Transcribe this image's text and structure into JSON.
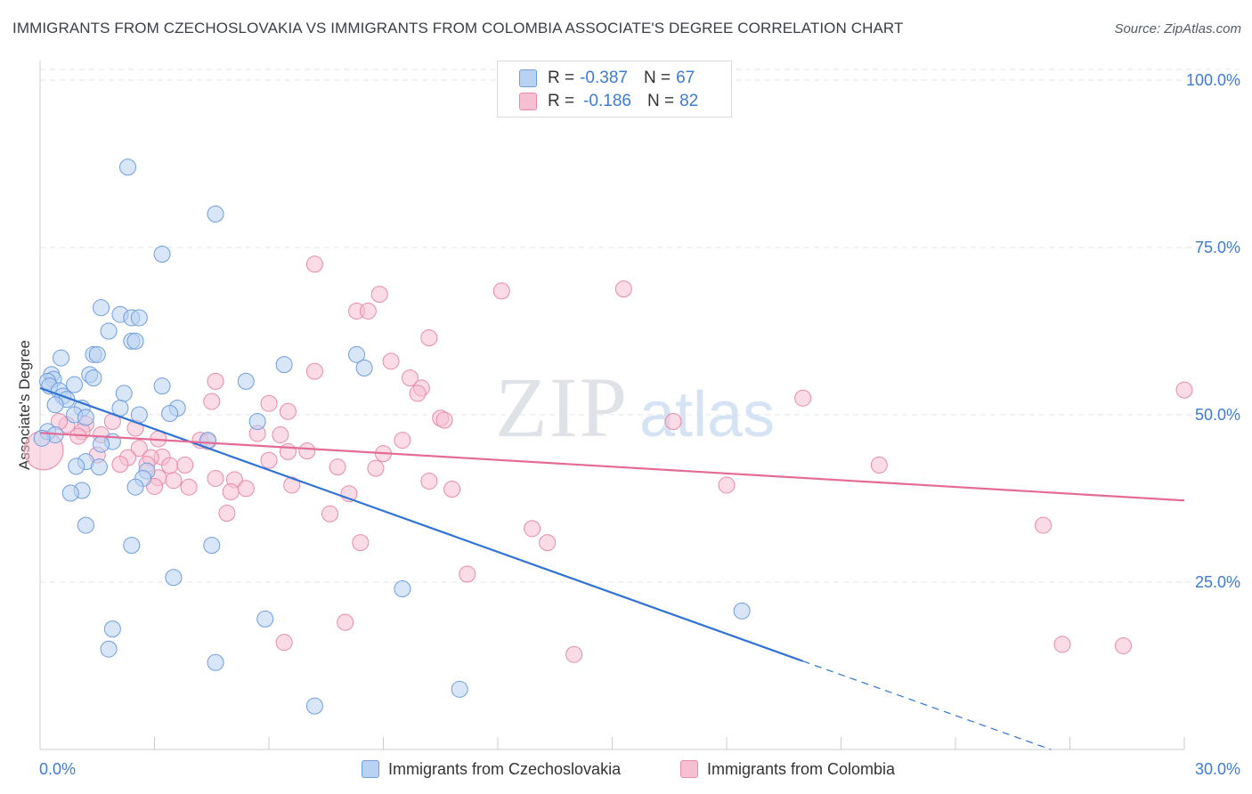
{
  "title": "IMMIGRANTS FROM CZECHOSLOVAKIA VS IMMIGRANTS FROM COLOMBIA ASSOCIATE'S DEGREE CORRELATION CHART",
  "source": "Source: ZipAtlas.com",
  "watermark": {
    "zip": "ZIP",
    "atlas": "atlas"
  },
  "legend_top": [
    {
      "r_label": "R =",
      "r_value": "-0.387",
      "n_label": "N =",
      "n_value": "67"
    },
    {
      "r_label": "R =",
      "r_value": "-0.186",
      "n_label": "N =",
      "n_value": "82"
    }
  ],
  "bottom_legend": [
    {
      "label": "Immigrants from Czechoslovakia"
    },
    {
      "label": "Immigrants from Colombia"
    }
  ],
  "colors": {
    "blue_fill": "#b9d2f3",
    "blue_stroke": "#6d9ee0",
    "blue_line": "#2f73d6",
    "pink_fill": "#f7c0d2",
    "pink_stroke": "#e88aa8",
    "pink_line": "#e36b95",
    "tick_label": "#3d7bd4",
    "grid": "#e1e4e8"
  },
  "chart_data": {
    "type": "scatter",
    "title": "IMMIGRANTS FROM CZECHOSLOVAKIA VS IMMIGRANTS FROM COLOMBIA ASSOCIATE'S DEGREE CORRELATION CHART",
    "xlabel": "",
    "ylabel": "Associate's Degree",
    "xlim": [
      0,
      30
    ],
    "ylim": [
      0,
      100
    ],
    "x_tick_labels": [
      "0.0%",
      "30.0%"
    ],
    "y_ticks": [
      25,
      50,
      75,
      100
    ],
    "y_tick_labels": [
      "25.0%",
      "50.0%",
      "75.0%",
      "100.0%"
    ],
    "grid": true,
    "legend_position": "top-center",
    "series": [
      {
        "name": "Immigrants from Czechoslovakia",
        "r": -0.387,
        "n": 67,
        "trend": {
          "x0": 0,
          "y0": 54.0,
          "x1": 20.0,
          "y1": 13.2,
          "dashed_to_x": 26.5,
          "dashed_to_y": 0
        },
        "points": [
          [
            2.3,
            87
          ],
          [
            4.6,
            80
          ],
          [
            3.2,
            74
          ],
          [
            1.6,
            66
          ],
          [
            2.1,
            65
          ],
          [
            2.4,
            64.5
          ],
          [
            2.6,
            64.5
          ],
          [
            1.8,
            62.5
          ],
          [
            2.4,
            61
          ],
          [
            2.5,
            61
          ],
          [
            1.4,
            59
          ],
          [
            1.5,
            59
          ],
          [
            0.55,
            58.5
          ],
          [
            8.3,
            59
          ],
          [
            6.4,
            57.5
          ],
          [
            8.5,
            57
          ],
          [
            1.3,
            56
          ],
          [
            1.4,
            55.5
          ],
          [
            0.3,
            56
          ],
          [
            0.35,
            55.3
          ],
          [
            0.2,
            55
          ],
          [
            0.25,
            54.3
          ],
          [
            0.5,
            53.6
          ],
          [
            0.9,
            54.5
          ],
          [
            5.4,
            55
          ],
          [
            3.2,
            54.3
          ],
          [
            2.2,
            53.2
          ],
          [
            0.6,
            52.8
          ],
          [
            0.7,
            52.3
          ],
          [
            0.4,
            51.5
          ],
          [
            1.1,
            51
          ],
          [
            2.1,
            51
          ],
          [
            3.6,
            51
          ],
          [
            0.9,
            50
          ],
          [
            2.6,
            50
          ],
          [
            1.2,
            49.6
          ],
          [
            3.4,
            50.2
          ],
          [
            5.7,
            49
          ],
          [
            0.2,
            47.5
          ],
          [
            0.4,
            47
          ],
          [
            0.05,
            46.5
          ],
          [
            4.4,
            46.2
          ],
          [
            1.9,
            46
          ],
          [
            1.6,
            45.6
          ],
          [
            1.2,
            43
          ],
          [
            0.95,
            42.3
          ],
          [
            1.55,
            42.2
          ],
          [
            2.8,
            41.6
          ],
          [
            2.7,
            40.5
          ],
          [
            2.5,
            39.2
          ],
          [
            1.1,
            38.7
          ],
          [
            0.8,
            38.3
          ],
          [
            1.2,
            33.5
          ],
          [
            2.4,
            30.5
          ],
          [
            4.5,
            30.5
          ],
          [
            3.5,
            25.7
          ],
          [
            9.5,
            24
          ],
          [
            5.9,
            19.5
          ],
          [
            1.9,
            18
          ],
          [
            18.4,
            20.7
          ],
          [
            1.8,
            15
          ],
          [
            4.6,
            13
          ],
          [
            11,
            9
          ],
          [
            7.2,
            6.5
          ]
        ]
      },
      {
        "name": "Immigrants from Colombia",
        "r": -0.186,
        "n": 82,
        "trend": {
          "x0": 0,
          "y0": 47.3,
          "x1": 30,
          "y1": 37.2
        },
        "points": [
          [
            7.2,
            72.5
          ],
          [
            12.1,
            68.5
          ],
          [
            15.3,
            68.8
          ],
          [
            8.9,
            68
          ],
          [
            8.3,
            65.5
          ],
          [
            8.6,
            65.5
          ],
          [
            10.2,
            61.5
          ],
          [
            9.2,
            58
          ],
          [
            7.2,
            56.5
          ],
          [
            4.6,
            55
          ],
          [
            9.7,
            55.5
          ],
          [
            10.0,
            54
          ],
          [
            9.9,
            53.2
          ],
          [
            6.0,
            51.7
          ],
          [
            4.5,
            52
          ],
          [
            6.5,
            50.5
          ],
          [
            10.5,
            49.5
          ],
          [
            10.6,
            49.2
          ],
          [
            1.9,
            49
          ],
          [
            2.5,
            48
          ],
          [
            0.7,
            48.5
          ],
          [
            0.5,
            49
          ],
          [
            1.2,
            48.6
          ],
          [
            16.6,
            49
          ],
          [
            20.0,
            52.5
          ],
          [
            30.0,
            53.7
          ],
          [
            1.1,
            47.5
          ],
          [
            1.0,
            46.8
          ],
          [
            1.6,
            47.0
          ],
          [
            5.7,
            47.2
          ],
          [
            6.3,
            47
          ],
          [
            4.2,
            46.2
          ],
          [
            4.4,
            46
          ],
          [
            9.5,
            46.2
          ],
          [
            3.1,
            46.4
          ],
          [
            2.6,
            45
          ],
          [
            6.5,
            44.5
          ],
          [
            7.0,
            44.6
          ],
          [
            9.0,
            44.2
          ],
          [
            1.5,
            44
          ],
          [
            3.2,
            43.7
          ],
          [
            2.9,
            43.6
          ],
          [
            2.3,
            43.6
          ],
          [
            2.1,
            42.6
          ],
          [
            2.8,
            42.6
          ],
          [
            6.0,
            43.2
          ],
          [
            3.4,
            42.4
          ],
          [
            3.8,
            42.5
          ],
          [
            7.8,
            42.2
          ],
          [
            8.8,
            42
          ],
          [
            22.0,
            42.5
          ],
          [
            3.1,
            40.6
          ],
          [
            3.5,
            40.2
          ],
          [
            4.6,
            40.5
          ],
          [
            5.1,
            40.3
          ],
          [
            3.0,
            39.3
          ],
          [
            3.9,
            39.2
          ],
          [
            5.4,
            39
          ],
          [
            6.6,
            39.5
          ],
          [
            5.0,
            38.5
          ],
          [
            8.1,
            38.2
          ],
          [
            10.2,
            40.1
          ],
          [
            10.8,
            38.9
          ],
          [
            18.0,
            39.5
          ],
          [
            4.9,
            35.3
          ],
          [
            7.6,
            35.2
          ],
          [
            12.9,
            33
          ],
          [
            26.3,
            33.5
          ],
          [
            8.4,
            30.9
          ],
          [
            13.3,
            30.9
          ],
          [
            11.2,
            26.2
          ],
          [
            8.0,
            19
          ],
          [
            6.4,
            16
          ],
          [
            14.0,
            14.2
          ],
          [
            26.8,
            15.7
          ],
          [
            28.4,
            15.5
          ],
          [
            0.0,
            44.7
          ]
        ]
      }
    ]
  }
}
